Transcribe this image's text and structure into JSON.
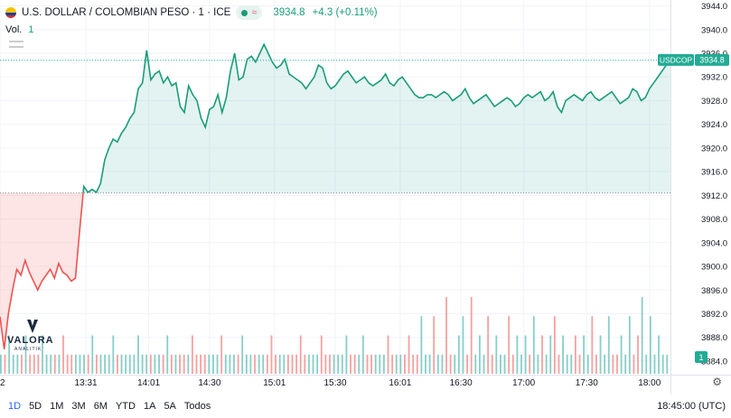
{
  "header": {
    "symbol_title": "U.S. DOLLAR / COLOMBIAN PESO · 1 · ICE",
    "last_price": "3934.8",
    "change": "+4.3 (+0.11%)",
    "volume_label": "Vol.",
    "volume_value": "1"
  },
  "price_tag": {
    "symbol": "USDCOP",
    "value": "3934.8"
  },
  "volume_tag": "1",
  "logo": {
    "name": "VALORA",
    "sub": "ANALITIK"
  },
  "bottom_bar": {
    "ranges": [
      "1D",
      "5D",
      "1M",
      "3M",
      "6M",
      "YTD",
      "1A",
      "5A",
      "Todos"
    ],
    "active_range": "1D",
    "clock": "18:45:00 (UTC)"
  },
  "colors": {
    "up": "#26a69a",
    "down": "#ef5350",
    "line_up": "#1a9d78",
    "tag": "#22ab94"
  },
  "chart_data": {
    "type": "area",
    "y_axis": {
      "ticks": [
        "3944.0",
        "3940.0",
        "3936.0",
        "3932.0",
        "3928.0",
        "3924.0",
        "3920.0",
        "3916.0",
        "3912.0",
        "3908.0",
        "3904.0",
        "3900.0",
        "3896.0",
        "3892.0",
        "3888.0",
        "3884.0"
      ],
      "ylim": [
        3881.7,
        3945.0
      ]
    },
    "x_axis": {
      "ticks": [
        "2",
        "13:31",
        "14:01",
        "14:30",
        "15:01",
        "15:30",
        "16:01",
        "16:30",
        "17:00",
        "17:30",
        "18:00"
      ],
      "tick_minutes": [
        770,
        811,
        841,
        870,
        901,
        930,
        961,
        990,
        1020,
        1050,
        1080
      ]
    },
    "reference_price": 3912.4,
    "last_price": 3934.8,
    "series": [
      {
        "x": [
          770,
          772,
          774,
          776,
          778,
          780,
          782,
          784,
          786,
          788,
          790,
          792,
          794,
          796,
          798,
          800,
          802,
          804,
          806,
          808,
          810,
          812,
          814,
          816,
          818,
          820,
          822,
          824,
          826,
          828,
          830,
          832,
          834,
          836,
          838,
          840,
          842,
          844,
          846,
          848,
          850,
          852,
          854,
          856,
          858,
          860,
          862,
          864,
          866,
          868,
          870,
          872,
          874,
          876,
          878,
          880,
          882,
          884,
          886,
          888,
          890,
          892,
          894,
          896,
          898,
          900,
          902,
          904,
          906,
          908,
          910,
          912,
          914,
          916,
          918,
          920,
          922,
          924,
          926,
          928,
          930,
          932,
          934,
          936,
          938,
          940,
          942,
          944,
          946,
          948,
          950,
          952,
          954,
          956,
          958,
          960,
          962,
          964,
          966,
          968,
          970,
          972,
          974,
          976,
          978,
          980,
          982,
          984,
          986,
          988,
          990,
          992,
          994,
          996,
          998,
          1000,
          1002,
          1004,
          1006,
          1008,
          1010,
          1012,
          1014,
          1016,
          1018,
          1020,
          1022,
          1024,
          1026,
          1028,
          1030,
          1032,
          1034,
          1036,
          1038,
          1040,
          1042,
          1044,
          1046,
          1048,
          1050,
          1052,
          1054,
          1056,
          1058,
          1060,
          1062,
          1064,
          1066,
          1068,
          1070,
          1072,
          1074,
          1076,
          1078,
          1080,
          1082,
          1084,
          1086,
          1088,
          1090
        ],
        "values": [
          3891.5,
          3886.0,
          3892.0,
          3896.0,
          3899.5,
          3898.5,
          3901.0,
          3899.0,
          3897.5,
          3896.0,
          3897.5,
          3898.5,
          3899.5,
          3898.0,
          3900.5,
          3899.0,
          3898.5,
          3897.5,
          3898.0,
          3906.0,
          3913.5,
          3912.5,
          3913.0,
          3912.5,
          3914.0,
          3918.0,
          3920.0,
          3921.5,
          3921.0,
          3922.5,
          3923.5,
          3925.0,
          3926.0,
          3930.0,
          3931.0,
          3936.5,
          3931.5,
          3932.5,
          3933.0,
          3931.0,
          3932.0,
          3930.5,
          3931.0,
          3927.0,
          3926.0,
          3930.5,
          3929.0,
          3928.0,
          3925.0,
          3923.5,
          3926.5,
          3927.0,
          3929.0,
          3926.0,
          3928.5,
          3933.0,
          3936.0,
          3931.5,
          3932.0,
          3935.0,
          3935.5,
          3934.5,
          3936.0,
          3937.5,
          3936.0,
          3934.5,
          3933.5,
          3934.0,
          3935.0,
          3932.5,
          3932.0,
          3931.5,
          3931.0,
          3930.0,
          3931.0,
          3932.0,
          3934.0,
          3933.5,
          3931.0,
          3930.0,
          3930.5,
          3931.5,
          3932.5,
          3933.0,
          3932.0,
          3931.0,
          3931.5,
          3932.0,
          3931.0,
          3930.5,
          3931.0,
          3931.5,
          3932.5,
          3931.0,
          3930.5,
          3931.5,
          3932.0,
          3931.0,
          3930.0,
          3929.0,
          3928.5,
          3928.5,
          3929.0,
          3929.0,
          3928.5,
          3929.0,
          3929.5,
          3929.0,
          3928.0,
          3928.5,
          3929.0,
          3930.0,
          3928.5,
          3927.5,
          3928.0,
          3928.5,
          3929.0,
          3928.0,
          3927.0,
          3927.5,
          3928.0,
          3928.5,
          3928.0,
          3927.0,
          3927.5,
          3928.5,
          3929.0,
          3928.5,
          3929.0,
          3929.5,
          3928.0,
          3928.5,
          3929.5,
          3927.0,
          3926.0,
          3928.0,
          3928.5,
          3929.0,
          3928.5,
          3928.0,
          3929.0,
          3929.5,
          3928.5,
          3928.0,
          3928.5,
          3929.0,
          3929.5,
          3928.5,
          3927.5,
          3928.0,
          3928.5,
          3930.0,
          3929.5,
          3928.0,
          3928.5,
          3930.0,
          3931.0,
          3932.0,
          3933.0,
          3934.0,
          3934.8
        ]
      }
    ],
    "volume": {
      "values": [
        1,
        1,
        2,
        1,
        1,
        1,
        2,
        1,
        1,
        1,
        2,
        1,
        1,
        1,
        1,
        2,
        1,
        1,
        1,
        1,
        1,
        1,
        2,
        1,
        1,
        1,
        1,
        2,
        1,
        1,
        1,
        1,
        1,
        2,
        1,
        1,
        1,
        1,
        1,
        1,
        2,
        1,
        1,
        1,
        1,
        1,
        2,
        1,
        1,
        1,
        1,
        1,
        1,
        2,
        1,
        1,
        1,
        1,
        2,
        1,
        1,
        1,
        1,
        1,
        1,
        2,
        1,
        1,
        1,
        1,
        1,
        1,
        2,
        1,
        1,
        1,
        1,
        2,
        1,
        1,
        1,
        1,
        1,
        2,
        1,
        1,
        1,
        2,
        1,
        1,
        1,
        1,
        1,
        2,
        1,
        1,
        1,
        1,
        2,
        1,
        1,
        3,
        1,
        1,
        3,
        1,
        1,
        4,
        1,
        1,
        2,
        3,
        1,
        4,
        1,
        2,
        1,
        3,
        1,
        2,
        1,
        1,
        3,
        1,
        2,
        1,
        2,
        1,
        3,
        1,
        2,
        1,
        2,
        3,
        1,
        2,
        1,
        1,
        2,
        1,
        2,
        1,
        3,
        1,
        2,
        1,
        3,
        1,
        1,
        2,
        1,
        3,
        1,
        2,
        4,
        1,
        3,
        1,
        2,
        1,
        1
      ]
    }
  }
}
